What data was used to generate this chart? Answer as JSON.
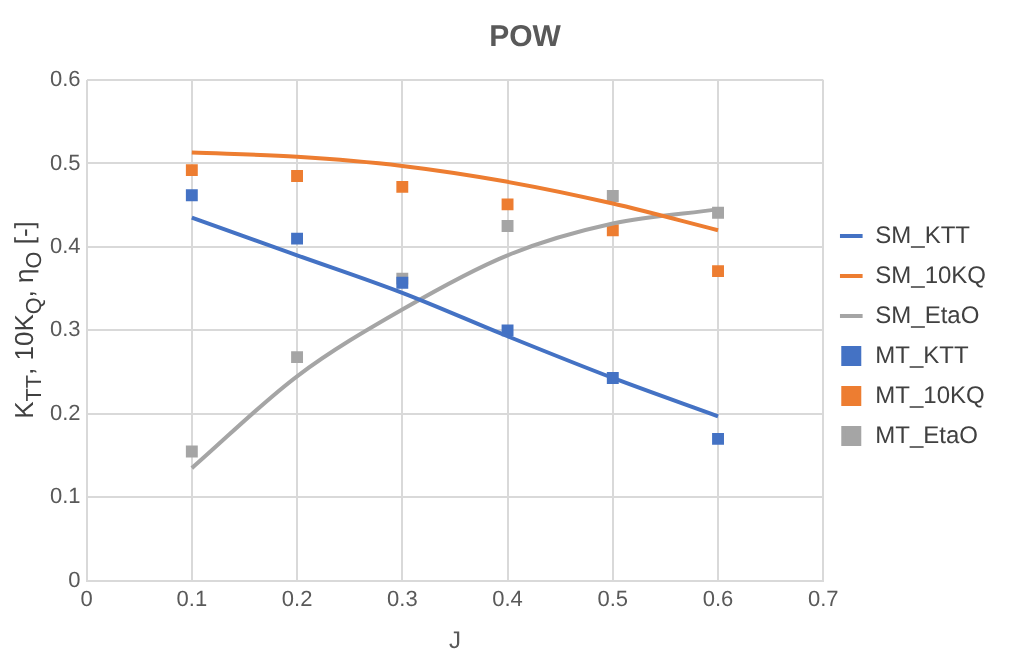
{
  "chart_data": {
    "type": "line",
    "title": "POW",
    "xlabel": "J",
    "ylabel": "K$_{TT}$, 10K$_{Q}$, η$_{O}$ [-]",
    "xlim": [
      0,
      0.7
    ],
    "xticks": [
      0,
      0.1,
      0.2,
      0.3,
      0.4,
      0.5,
      0.6,
      0.7
    ],
    "ylim": [
      0,
      0.6
    ],
    "yticks": [
      0,
      0.1,
      0.2,
      0.3,
      0.4,
      0.5,
      0.6
    ],
    "grid": true,
    "legend": "right",
    "x": [
      0.1,
      0.2,
      0.3,
      0.4,
      0.5,
      0.6
    ],
    "series": [
      {
        "name": "SM_KTT",
        "marker": "none",
        "color": "#4472c4",
        "values": [
          0.435,
          0.39,
          0.345,
          0.293,
          0.243,
          0.197
        ]
      },
      {
        "name": "SM_10KQ",
        "marker": "none",
        "color": "#ed7d31",
        "values": [
          0.513,
          0.508,
          0.497,
          0.478,
          0.452,
          0.42
        ]
      },
      {
        "name": "SM_EtaO",
        "marker": "none",
        "color": "#a5a5a5",
        "values": [
          0.135,
          0.245,
          0.325,
          0.39,
          0.428,
          0.445
        ]
      },
      {
        "name": "MT_KTT",
        "type": "scatter",
        "marker": "square",
        "color": "#4472c4",
        "values": [
          0.462,
          0.41,
          0.357,
          0.3,
          0.243,
          0.17
        ]
      },
      {
        "name": "MT_10KQ",
        "type": "scatter",
        "marker": "square",
        "color": "#ed7d31",
        "values": [
          0.492,
          0.485,
          0.472,
          0.451,
          0.42,
          0.371
        ]
      },
      {
        "name": "MT_EtaO",
        "type": "scatter",
        "marker": "square",
        "color": "#a5a5a5",
        "values": [
          0.155,
          0.268,
          0.362,
          0.425,
          0.461,
          0.441
        ]
      }
    ]
  }
}
